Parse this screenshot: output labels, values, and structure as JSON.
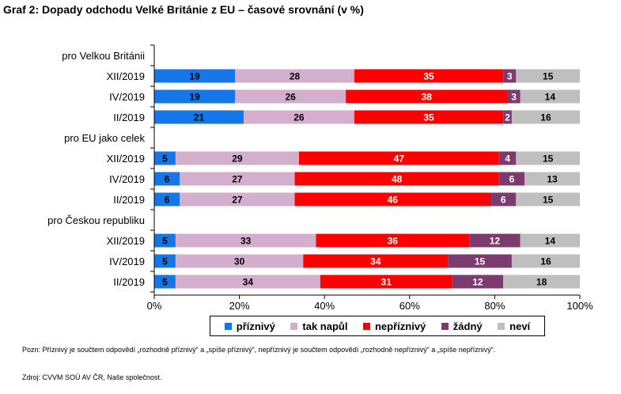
{
  "title": "Graf 2: Dopady odchodu Velké Británie z EU – časové srovnání (v %)",
  "note": "Pozn: Příznivý je součtem odpovědí „rozhodně příznivý“ a „spíše příznivý“, nepříznivý je součtem odpovědí „rozhodně nepříznivý“ a „spíše nepříznivý“.",
  "source": "Zdroj: CVVM SOÚ AV ČR, Naše společnost.",
  "chart_data": {
    "type": "bar",
    "orientation": "horizontal",
    "stacked": true,
    "percent_stacked": true,
    "xlim": [
      0,
      100
    ],
    "x_ticks": [
      "0%",
      "20%",
      "40%",
      "60%",
      "80%",
      "100%"
    ],
    "legend_position": "bottom",
    "grid": false,
    "series": [
      {
        "name": "příznivý",
        "color": "#1576e8"
      },
      {
        "name": "tak napůl",
        "color": "#d4afcd"
      },
      {
        "name": "nepříznivý",
        "color": "#ff0000"
      },
      {
        "name": "žádný",
        "color": "#7b3b6e"
      },
      {
        "name": "neví",
        "color": "#bfbfbf"
      }
    ],
    "groups": [
      {
        "label": "pro Velkou Británii",
        "rows": [
          {
            "label": "XII/2019",
            "values": [
              19,
              28,
              35,
              3,
              15
            ]
          },
          {
            "label": "IV/2019",
            "values": [
              19,
              26,
              38,
              3,
              14
            ]
          },
          {
            "label": "II/2019",
            "values": [
              21,
              26,
              35,
              2,
              16
            ]
          }
        ]
      },
      {
        "label": "pro EU jako celek",
        "rows": [
          {
            "label": "XII/2019",
            "values": [
              5,
              29,
              47,
              4,
              15
            ]
          },
          {
            "label": "IV/2019",
            "values": [
              6,
              27,
              48,
              6,
              13
            ]
          },
          {
            "label": "II/2019",
            "values": [
              6,
              27,
              46,
              6,
              15
            ]
          }
        ]
      },
      {
        "label": "pro Českou republiku",
        "rows": [
          {
            "label": "XII/2019",
            "values": [
              5,
              33,
              36,
              12,
              14
            ]
          },
          {
            "label": "IV/2019",
            "values": [
              5,
              30,
              34,
              15,
              16
            ]
          },
          {
            "label": "II/2019",
            "values": [
              5,
              34,
              31,
              12,
              18
            ]
          }
        ]
      }
    ]
  }
}
